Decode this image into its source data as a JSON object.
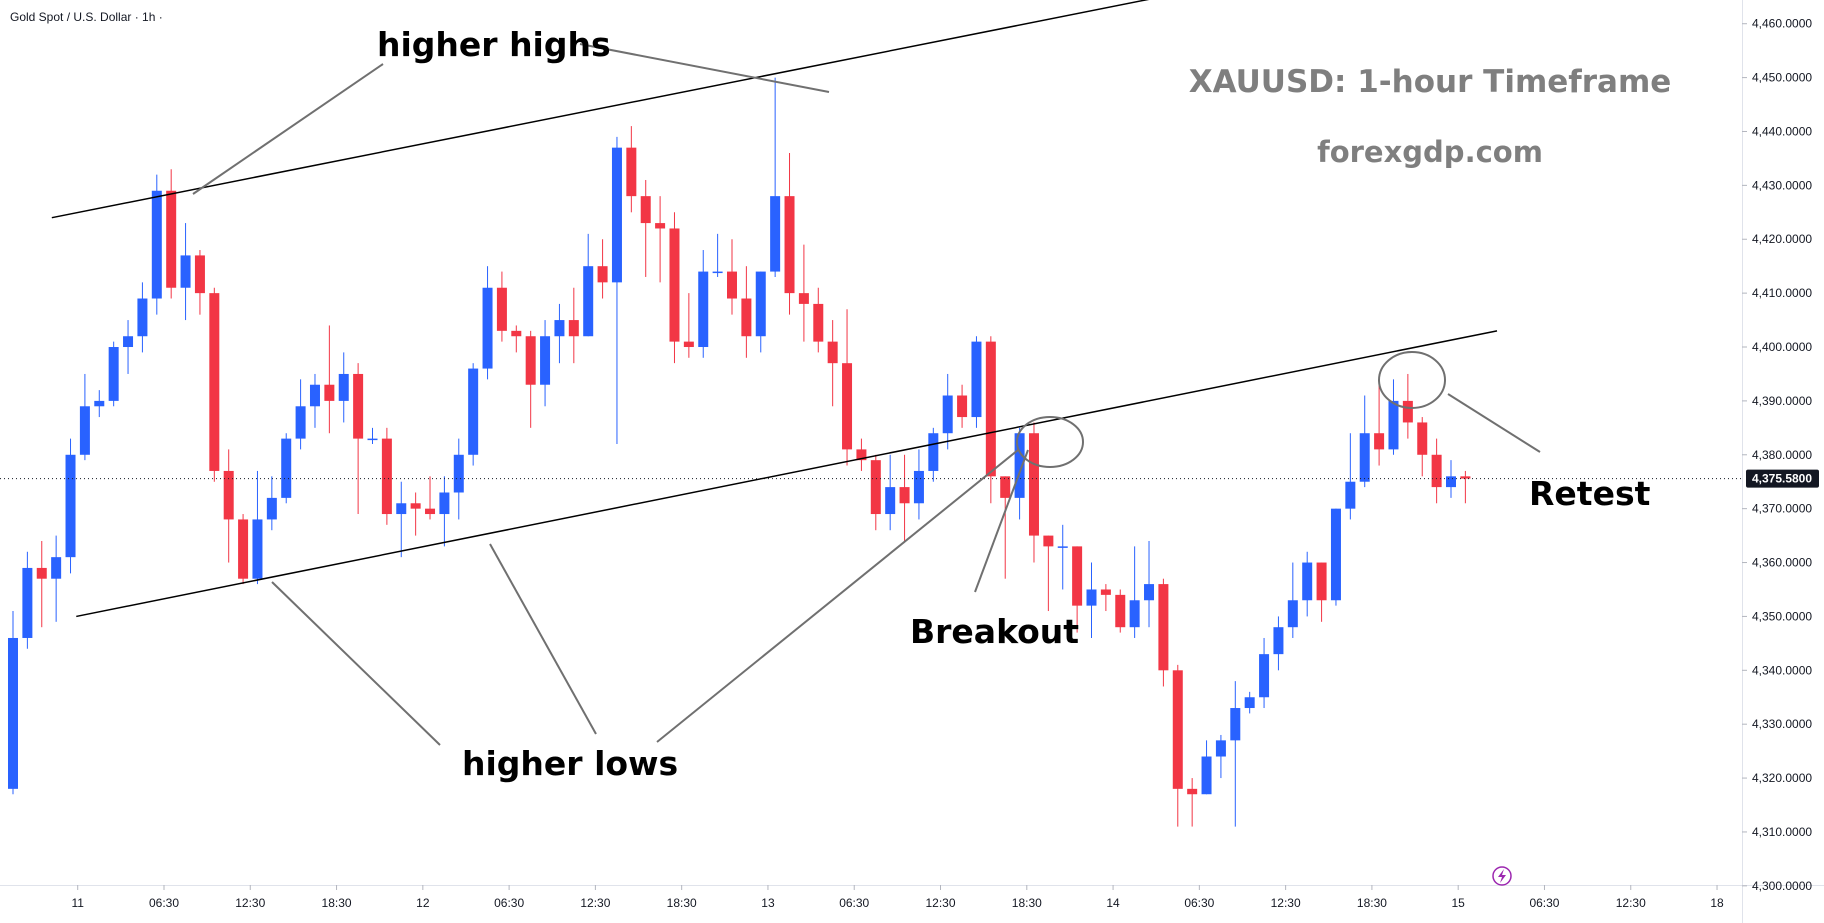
{
  "header": {
    "symbol_title": "Gold Spot / U.S. Dollar · 1h ·"
  },
  "watermark": {
    "title": "XAUUSD: 1-hour Timeframe",
    "site": "forexgdp.com"
  },
  "annotations": {
    "higher_highs": "higher highs",
    "higher_lows": "higher lows",
    "breakout": "Breakout",
    "retest": "Retest"
  },
  "colors": {
    "up": "#2962ff",
    "down": "#f23645",
    "trendline": "#000000",
    "pointer": "#707070",
    "current_price_bg": "#131722"
  },
  "icons": {
    "alert": "lightning-bolt-icon"
  },
  "current_price": {
    "label": "4,375.5800",
    "value": 4375.58
  },
  "chart_data": {
    "type": "candlestick",
    "ylim": [
      4297,
      4467
    ],
    "y_ticks": [
      4300,
      4310,
      4320,
      4330,
      4340,
      4350,
      4360,
      4370,
      4380,
      4390,
      4400,
      4410,
      4420,
      4430,
      4440,
      4450,
      4460
    ],
    "y_tick_labels": [
      "4,300.0000",
      "4,310.0000",
      "4,320.0000",
      "4,330.0000",
      "4,340.0000",
      "4,350.0000",
      "4,360.0000",
      "4,370.0000",
      "4,380.0000",
      "4,390.0000",
      "4,400.0000",
      "4,410.0000",
      "4,420.0000",
      "4,430.0000",
      "4,440.0000",
      "4,450.0000",
      "4,460.0000"
    ],
    "x_ticks": [
      {
        "bar": 4.5,
        "label": "11"
      },
      {
        "bar": 10.5,
        "label": "06:30"
      },
      {
        "bar": 16.5,
        "label": "12:30"
      },
      {
        "bar": 22.5,
        "label": "18:30"
      },
      {
        "bar": 28.5,
        "label": "12"
      },
      {
        "bar": 34.5,
        "label": "06:30"
      },
      {
        "bar": 40.5,
        "label": "12:30"
      },
      {
        "bar": 46.5,
        "label": "18:30"
      },
      {
        "bar": 52.5,
        "label": "13"
      },
      {
        "bar": 58.5,
        "label": "06:30"
      },
      {
        "bar": 64.5,
        "label": "12:30"
      },
      {
        "bar": 70.5,
        "label": "18:30"
      },
      {
        "bar": 76.5,
        "label": "14"
      },
      {
        "bar": 82.5,
        "label": "06:30"
      },
      {
        "bar": 88.5,
        "label": "12:30"
      },
      {
        "bar": 94.5,
        "label": "18:30"
      },
      {
        "bar": 100.5,
        "label": "15"
      },
      {
        "bar": 106.5,
        "label": "06:30"
      },
      {
        "bar": 112.5,
        "label": "12:30"
      },
      {
        "bar": 118.5,
        "label": "18"
      }
    ],
    "candles": [
      [
        4318,
        4346,
        4351,
        4317
      ],
      [
        4346,
        4359,
        4362,
        4344
      ],
      [
        4359,
        4357,
        4364,
        4348
      ],
      [
        4357,
        4361,
        4365,
        4349
      ],
      [
        4361,
        4380,
        4383,
        4358
      ],
      [
        4380,
        4389,
        4395,
        4379
      ],
      [
        4389,
        4390,
        4392,
        4387
      ],
      [
        4390,
        4400,
        4401,
        4389
      ],
      [
        4400,
        4402,
        4405,
        4395
      ],
      [
        4402,
        4409,
        4412,
        4399
      ],
      [
        4409,
        4429,
        4432,
        4406
      ],
      [
        4429,
        4411,
        4433,
        4409
      ],
      [
        4411,
        4417,
        4423,
        4405
      ],
      [
        4417,
        4410,
        4418,
        4406
      ],
      [
        4410,
        4377,
        4411,
        4375
      ],
      [
        4377,
        4368,
        4381,
        4360
      ],
      [
        4368,
        4357,
        4369,
        4356
      ],
      [
        4357,
        4368,
        4377,
        4356
      ],
      [
        4368,
        4372,
        4376,
        4366
      ],
      [
        4372,
        4383,
        4384,
        4371
      ],
      [
        4383,
        4389,
        4394,
        4381
      ],
      [
        4389,
        4393,
        4395,
        4385
      ],
      [
        4393,
        4390,
        4404,
        4384
      ],
      [
        4390,
        4395,
        4399,
        4386
      ],
      [
        4395,
        4383,
        4397,
        4369
      ],
      [
        4383,
        4383,
        4385,
        4382
      ],
      [
        4383,
        4369,
        4385,
        4367
      ],
      [
        4369,
        4371,
        4375,
        4361
      ],
      [
        4371,
        4370,
        4373,
        4365
      ],
      [
        4370,
        4369,
        4376,
        4368
      ],
      [
        4369,
        4373,
        4376,
        4363
      ],
      [
        4373,
        4380,
        4383,
        4368
      ],
      [
        4380,
        4396,
        4397,
        4378
      ],
      [
        4396,
        4411,
        4415,
        4394
      ],
      [
        4411,
        4403,
        4414,
        4401
      ],
      [
        4403,
        4402,
        4404,
        4399
      ],
      [
        4402,
        4393,
        4403,
        4385
      ],
      [
        4393,
        4402,
        4405,
        4389
      ],
      [
        4402,
        4405,
        4408,
        4397
      ],
      [
        4405,
        4402,
        4411,
        4397
      ],
      [
        4402,
        4415,
        4421,
        4402
      ],
      [
        4415,
        4412,
        4420,
        4409
      ],
      [
        4412,
        4437,
        4439,
        4382
      ],
      [
        4437,
        4428,
        4441,
        4425
      ],
      [
        4428,
        4423,
        4431,
        4413
      ],
      [
        4423,
        4422,
        4428,
        4412
      ],
      [
        4422,
        4401,
        4425,
        4397
      ],
      [
        4401,
        4400,
        4410,
        4398
      ],
      [
        4400,
        4414,
        4418,
        4398
      ],
      [
        4414,
        4414,
        4421,
        4413
      ],
      [
        4414,
        4409,
        4420,
        4406
      ],
      [
        4409,
        4402,
        4415,
        4398
      ],
      [
        4402,
        4414,
        4414,
        4399
      ],
      [
        4414,
        4428,
        4450,
        4413
      ],
      [
        4428,
        4410,
        4436,
        4406
      ],
      [
        4410,
        4408,
        4419,
        4401
      ],
      [
        4408,
        4401,
        4411,
        4399
      ],
      [
        4401,
        4397,
        4405,
        4389
      ],
      [
        4397,
        4381,
        4407,
        4378
      ],
      [
        4381,
        4379,
        4383,
        4377
      ],
      [
        4379,
        4369,
        4380,
        4366
      ],
      [
        4369,
        4374,
        4380,
        4366
      ],
      [
        4374,
        4371,
        4380,
        4364
      ],
      [
        4371,
        4377,
        4381,
        4368
      ],
      [
        4377,
        4384,
        4385,
        4375
      ],
      [
        4384,
        4391,
        4395,
        4381
      ],
      [
        4391,
        4387,
        4393,
        4385
      ],
      [
        4387,
        4401,
        4402,
        4385
      ],
      [
        4401,
        4376,
        4402,
        4371
      ],
      [
        4376,
        4372,
        4376,
        4357
      ],
      [
        4372,
        4384,
        4385,
        4368
      ],
      [
        4384,
        4365,
        4386,
        4360
      ],
      [
        4365,
        4363,
        4365,
        4351
      ],
      [
        4363,
        4363,
        4367,
        4355
      ],
      [
        4363,
        4352,
        4363,
        4347
      ],
      [
        4352,
        4355,
        4360,
        4346
      ],
      [
        4355,
        4354,
        4356,
        4351
      ],
      [
        4354,
        4348,
        4355,
        4347
      ],
      [
        4348,
        4353,
        4363,
        4346
      ],
      [
        4353,
        4356,
        4364,
        4348
      ],
      [
        4356,
        4340,
        4357,
        4337
      ],
      [
        4340,
        4318,
        4341,
        4311
      ],
      [
        4318,
        4317,
        4320,
        4311
      ],
      [
        4317,
        4324,
        4327,
        4317
      ],
      [
        4324,
        4327,
        4328,
        4320
      ],
      [
        4327,
        4333,
        4338,
        4311
      ],
      [
        4333,
        4335,
        4336,
        4332
      ],
      [
        4335,
        4343,
        4346,
        4333
      ],
      [
        4343,
        4348,
        4350,
        4340
      ],
      [
        4348,
        4353,
        4360,
        4346
      ],
      [
        4353,
        4360,
        4362,
        4350
      ],
      [
        4360,
        4353,
        4360,
        4349
      ],
      [
        4353,
        4370,
        4370,
        4352
      ],
      [
        4370,
        4375,
        4384,
        4368
      ],
      [
        4375,
        4384,
        4391,
        4374
      ],
      [
        4384,
        4381,
        4394,
        4378
      ],
      [
        4381,
        4390,
        4394,
        4380
      ],
      [
        4390,
        4386,
        4395,
        4383
      ],
      [
        4386,
        4380,
        4387,
        4376
      ],
      [
        4380,
        4374,
        4383,
        4371
      ],
      [
        4374,
        4376,
        4379,
        4372
      ],
      [
        4376,
        4375.58,
        4377,
        4371
      ]
    ]
  }
}
